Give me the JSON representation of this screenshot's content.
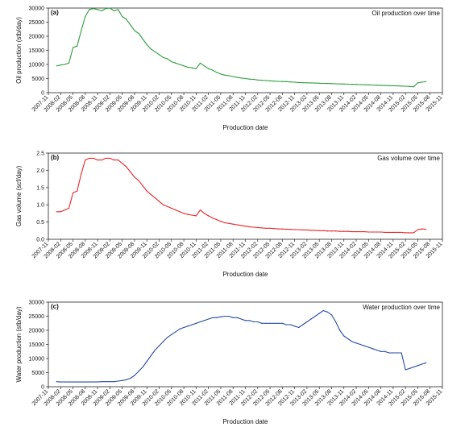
{
  "chart_data": [
    {
      "type": "line",
      "panel_tag": "(a)",
      "title": "Oil production over time",
      "xlabel": "Production date",
      "ylabel": "Oil production (stb/day)",
      "ylim": [
        0,
        30000
      ],
      "yticks": [
        "0",
        "5000",
        "10000",
        "15000",
        "20000",
        "25000",
        "30000"
      ],
      "yticks_values": [
        0,
        5000,
        10000,
        15000,
        20000,
        25000,
        30000
      ],
      "xlim": [
        0,
        96
      ],
      "xticks": [
        "2007-11",
        "2008-02",
        "2008-05",
        "2008-08",
        "2008-11",
        "2009-02",
        "2009-05",
        "2009-08",
        "2009-11",
        "2010-02",
        "2010-05",
        "2010-08",
        "2010-11",
        "2011-02",
        "2011-05",
        "2011-08",
        "2011-11",
        "2012-02",
        "2012-05",
        "2012-08",
        "2012-11",
        "2013-02",
        "2013-05",
        "2013-08",
        "2013-11",
        "2014-02",
        "2014-05",
        "2014-08",
        "2014-11",
        "2015-02",
        "2015-05",
        "2015-08",
        "2015-11"
      ],
      "grid": false,
      "color": "#2e9e3e",
      "series": [
        {
          "x": [
            2,
            3,
            4,
            5,
            6,
            7,
            8,
            9,
            10,
            11,
            12,
            13,
            14,
            15,
            16,
            17,
            18,
            19,
            20,
            21,
            22,
            23,
            24,
            25,
            26,
            27,
            28,
            29,
            30,
            31,
            32,
            33,
            34,
            35,
            36,
            37,
            38,
            39,
            40,
            41,
            42,
            43,
            44,
            45,
            46,
            47,
            48,
            49,
            50,
            51,
            52,
            53,
            54,
            55,
            56,
            57,
            58,
            59,
            60,
            61,
            62,
            63,
            64,
            65,
            66,
            67,
            68,
            69,
            70,
            71,
            72,
            73,
            74,
            75,
            76,
            77,
            78,
            79,
            80,
            81,
            82,
            83,
            84,
            85,
            86,
            87,
            88,
            89,
            90,
            91,
            92
          ],
          "values": [
            9500,
            9800,
            10000,
            10500,
            16000,
            16500,
            22000,
            27000,
            29500,
            29800,
            29500,
            29000,
            29800,
            30000,
            29000,
            29500,
            27000,
            26000,
            24000,
            22000,
            21000,
            19000,
            17000,
            15500,
            14500,
            13500,
            12500,
            12000,
            11000,
            10500,
            10000,
            9500,
            9000,
            8800,
            8500,
            10500,
            9500,
            8500,
            8000,
            7200,
            6600,
            6200,
            6000,
            5700,
            5400,
            5200,
            5000,
            4800,
            4700,
            4500,
            4400,
            4300,
            4200,
            4100,
            4000,
            3950,
            3900,
            3800,
            3700,
            3600,
            3550,
            3500,
            3450,
            3400,
            3350,
            3300,
            3250,
            3200,
            3150,
            3100,
            3050,
            3000,
            2950,
            2900,
            2850,
            2800,
            2750,
            2700,
            2650,
            2600,
            2550,
            2500,
            2450,
            2400,
            2350,
            2300,
            2200,
            2100,
            3500,
            3700,
            3900
          ]
        }
      ]
    },
    {
      "type": "line",
      "panel_tag": "(b)",
      "title": "Gas volume over time",
      "xlabel": "Production date",
      "ylabel": "Gas volume (scf/day)",
      "ylim": [
        0,
        2.5
      ],
      "yticks": [
        "0.0",
        "0.5",
        "1.0",
        "1.5",
        "2.0",
        "2.5"
      ],
      "yticks_values": [
        0,
        0.5,
        1.0,
        1.5,
        2.0,
        2.5
      ],
      "xlim": [
        0,
        96
      ],
      "xticks": [
        "2007-11",
        "2008-02",
        "2008-05",
        "2008-08",
        "2008-11",
        "2009-02",
        "2009-05",
        "2009-08",
        "2009-11",
        "2010-02",
        "2010-05",
        "2010-08",
        "2010-11",
        "2011-02",
        "2011-05",
        "2011-08",
        "2011-11",
        "2012-02",
        "2012-05",
        "2012-08",
        "2012-11",
        "2013-02",
        "2013-05",
        "2013-08",
        "2013-11",
        "2014-02",
        "2014-05",
        "2014-08",
        "2014-11",
        "2015-02",
        "2015-05",
        "2015-08",
        "2015-11"
      ],
      "grid": false,
      "color": "#e8262b",
      "series": [
        {
          "x": [
            2,
            3,
            4,
            5,
            6,
            7,
            8,
            9,
            10,
            11,
            12,
            13,
            14,
            15,
            16,
            17,
            18,
            19,
            20,
            21,
            22,
            23,
            24,
            25,
            26,
            27,
            28,
            29,
            30,
            31,
            32,
            33,
            34,
            35,
            36,
            37,
            38,
            39,
            40,
            41,
            42,
            43,
            44,
            45,
            46,
            47,
            48,
            49,
            50,
            51,
            52,
            53,
            54,
            55,
            56,
            57,
            58,
            59,
            60,
            61,
            62,
            63,
            64,
            65,
            66,
            67,
            68,
            69,
            70,
            71,
            72,
            73,
            74,
            75,
            76,
            77,
            78,
            79,
            80,
            81,
            82,
            83,
            84,
            85,
            86,
            87,
            88,
            89,
            90,
            91,
            92
          ],
          "values": [
            0.8,
            0.8,
            0.85,
            0.9,
            1.35,
            1.4,
            1.9,
            2.3,
            2.35,
            2.35,
            2.3,
            2.3,
            2.35,
            2.35,
            2.3,
            2.3,
            2.2,
            2.1,
            1.95,
            1.8,
            1.7,
            1.55,
            1.4,
            1.3,
            1.2,
            1.1,
            1.0,
            0.95,
            0.9,
            0.85,
            0.8,
            0.75,
            0.72,
            0.7,
            0.68,
            0.85,
            0.75,
            0.68,
            0.62,
            0.57,
            0.52,
            0.48,
            0.46,
            0.44,
            0.42,
            0.4,
            0.38,
            0.36,
            0.35,
            0.34,
            0.33,
            0.32,
            0.32,
            0.31,
            0.3,
            0.3,
            0.29,
            0.29,
            0.28,
            0.28,
            0.27,
            0.27,
            0.26,
            0.26,
            0.25,
            0.25,
            0.24,
            0.24,
            0.24,
            0.23,
            0.23,
            0.23,
            0.22,
            0.22,
            0.22,
            0.22,
            0.21,
            0.21,
            0.21,
            0.21,
            0.2,
            0.2,
            0.2,
            0.2,
            0.2,
            0.19,
            0.19,
            0.19,
            0.28,
            0.3,
            0.29
          ]
        }
      ]
    },
    {
      "type": "line",
      "panel_tag": "(c)",
      "title": "Water production over time",
      "xlabel": "Production date",
      "ylabel": "Water production (stb/day)",
      "ylim": [
        0,
        30000
      ],
      "yticks": [
        "0",
        "5000",
        "10000",
        "15000",
        "20000",
        "25000",
        "30000"
      ],
      "yticks_values": [
        0,
        5000,
        10000,
        15000,
        20000,
        25000,
        30000
      ],
      "xlim": [
        0,
        96
      ],
      "xticks": [
        "2007-11",
        "2008-02",
        "2008-05",
        "2008-08",
        "2008-11",
        "2009-02",
        "2009-05",
        "2009-08",
        "2009-11",
        "2010-02",
        "2010-05",
        "2010-08",
        "2010-11",
        "2011-02",
        "2011-05",
        "2011-08",
        "2011-11",
        "2012-02",
        "2012-05",
        "2012-08",
        "2012-11",
        "2013-02",
        "2013-05",
        "2013-08",
        "2013-11",
        "2014-02",
        "2014-05",
        "2014-08",
        "2014-11",
        "2015-02",
        "2015-05",
        "2015-08",
        "2015-11"
      ],
      "grid": false,
      "color": "#2a4ea0",
      "series": [
        {
          "x": [
            2,
            3,
            4,
            5,
            6,
            7,
            8,
            9,
            10,
            11,
            12,
            13,
            14,
            15,
            16,
            17,
            18,
            19,
            20,
            21,
            22,
            23,
            24,
            25,
            26,
            27,
            28,
            29,
            30,
            31,
            32,
            33,
            34,
            35,
            36,
            37,
            38,
            39,
            40,
            41,
            42,
            43,
            44,
            45,
            46,
            47,
            48,
            49,
            50,
            51,
            52,
            53,
            54,
            55,
            56,
            57,
            58,
            59,
            60,
            61,
            62,
            63,
            64,
            65,
            66,
            67,
            68,
            69,
            70,
            71,
            72,
            73,
            74,
            75,
            76,
            77,
            78,
            79,
            80,
            81,
            82,
            83,
            84,
            85,
            86,
            87,
            88,
            89,
            90,
            91,
            92
          ],
          "values": [
            1800,
            1700,
            1700,
            1700,
            1700,
            1700,
            1700,
            1700,
            1700,
            1700,
            1700,
            1800,
            1800,
            1800,
            1800,
            2000,
            2200,
            2500,
            3000,
            4000,
            5500,
            7000,
            9000,
            11000,
            13000,
            14500,
            16000,
            17500,
            18500,
            19500,
            20500,
            21000,
            21500,
            22000,
            22500,
            23000,
            23500,
            24000,
            24500,
            24500,
            24800,
            25000,
            25000,
            24500,
            24500,
            24000,
            23500,
            23500,
            23000,
            23000,
            22500,
            22500,
            22500,
            22500,
            22500,
            22500,
            22000,
            22000,
            21500,
            21000,
            22000,
            23000,
            24000,
            25000,
            26000,
            27000,
            26500,
            25500,
            23000,
            20000,
            18000,
            17000,
            16000,
            15500,
            15000,
            14500,
            14000,
            13500,
            13000,
            12500,
            12500,
            12000,
            12000,
            12000,
            12000,
            6000,
            6500,
            7000,
            7500,
            8000,
            8500
          ]
        }
      ]
    }
  ]
}
